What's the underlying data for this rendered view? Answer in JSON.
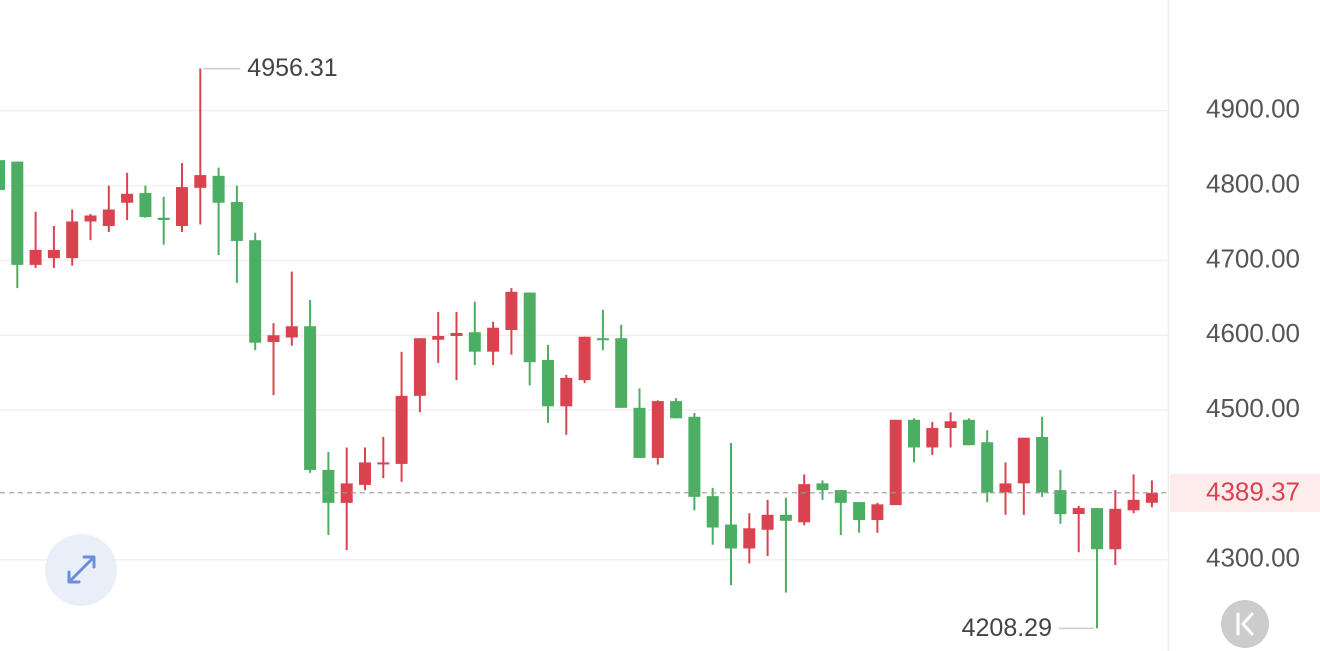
{
  "chart_data": {
    "type": "candlestick",
    "up_color": "#d9434f",
    "down_color": "#4cae62",
    "grid": true,
    "last_price_line": true,
    "ylim": [
      4178,
      5048
    ],
    "yticks": [
      {
        "value": 4300,
        "label": "4300.00"
      },
      {
        "value": 4500,
        "label": "4500.00"
      },
      {
        "value": 4600,
        "label": "4600.00"
      },
      {
        "value": 4700,
        "label": "4700.00"
      },
      {
        "value": 4800,
        "label": "4800.00"
      },
      {
        "value": 4900,
        "label": "4900.00"
      }
    ],
    "series": {
      "open": [
        4834,
        4832,
        4694,
        4703,
        4703,
        4752,
        4746,
        4777,
        4790,
        4757,
        4746,
        4797,
        4813,
        4778,
        4727,
        4591,
        4597,
        4612,
        4420,
        4376,
        4400,
        4428,
        4428,
        4519,
        4594,
        4599,
        4604,
        4578,
        4607,
        4657,
        4567,
        4505,
        4540,
        4596,
        4596,
        4503,
        4436,
        4512,
        4491,
        4385,
        4347,
        4315,
        4340,
        4360,
        4350,
        4402,
        4393,
        4377,
        4353,
        4373,
        4487,
        4450,
        4476,
        4487,
        4457,
        4390,
        4402,
        4464,
        4393,
        4361,
        4369,
        4314,
        4366,
        4376
      ],
      "high": [
        4888,
        4832,
        4765,
        4746,
        4768,
        4762,
        4800,
        4817,
        4800,
        4785,
        4830,
        4956.31,
        4824,
        4800,
        4737,
        4616,
        4685,
        4647,
        4444,
        4450,
        4450,
        4464,
        4578,
        4596,
        4631,
        4631,
        4645,
        4618,
        4663,
        4657,
        4587,
        4547,
        4598,
        4634,
        4614,
        4529,
        4513,
        4516,
        4496,
        4396,
        4456,
        4362,
        4380,
        4383,
        4414,
        4406,
        4393,
        4377,
        4376,
        4487,
        4489,
        4484,
        4497,
        4489,
        4473,
        4430,
        4463,
        4491,
        4420,
        4372,
        4369,
        4393,
        4414,
        4406
      ],
      "low": [
        4794,
        4663,
        4690,
        4690,
        4693,
        4727,
        4738,
        4754,
        4757,
        4721,
        4738,
        4748,
        4707,
        4670,
        4580,
        4520,
        4586,
        4416,
        4333,
        4313,
        4393,
        4409,
        4404,
        4497,
        4563,
        4540,
        4560,
        4560,
        4574,
        4533,
        4483,
        4467,
        4536,
        4580,
        4503,
        4436,
        4427,
        4489,
        4366,
        4320,
        4266,
        4295,
        4305,
        4256,
        4346,
        4380,
        4333,
        4336,
        4336,
        4373,
        4430,
        4440,
        4450,
        4453,
        4377,
        4360,
        4360,
        4384,
        4348,
        4310,
        4208.29,
        4293,
        4362,
        4370
      ],
      "close": [
        4794,
        4694,
        4714,
        4714,
        4752,
        4760,
        4768,
        4789,
        4758,
        4754,
        4798,
        4814,
        4777,
        4726,
        4590,
        4600,
        4612,
        4420,
        4376,
        4402,
        4430,
        4430,
        4519,
        4596,
        4599,
        4603,
        4578,
        4610,
        4658,
        4564,
        4505,
        4543,
        4598,
        4594,
        4503,
        4436,
        4512,
        4489,
        4384,
        4343,
        4315,
        4342,
        4360,
        4352,
        4401,
        4393,
        4376,
        4353,
        4374,
        4487,
        4450,
        4476,
        4485,
        4453,
        4390,
        4402,
        4463,
        4390,
        4361,
        4369,
        4314,
        4368,
        4380,
        4389.37
      ]
    }
  }
}
